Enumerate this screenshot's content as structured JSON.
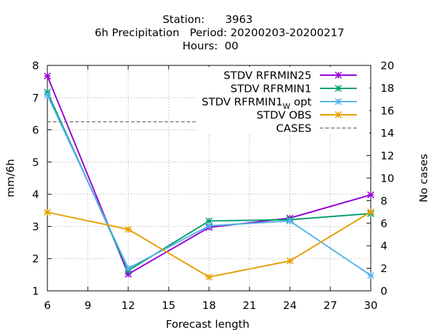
{
  "chart_data": {
    "type": "line",
    "title_lines": [
      "Station:      3963",
      "6h Precipitation   Period: 20200203-20200217",
      "Hours:  00"
    ],
    "xlabel": "Forecast length",
    "ylabel": "mm/6h",
    "y2label": "No cases",
    "xlim": [
      6,
      30
    ],
    "ylim": [
      1,
      8
    ],
    "y2lim": [
      0,
      20
    ],
    "xticks": [
      6,
      9,
      12,
      15,
      18,
      21,
      24,
      27,
      30
    ],
    "yticks": [
      1,
      2,
      3,
      4,
      5,
      6,
      7,
      8
    ],
    "y2ticks": [
      0,
      2,
      4,
      6,
      8,
      10,
      12,
      14,
      16,
      18,
      20
    ],
    "grid": true,
    "legend_position": "top-right",
    "x": [
      6,
      12,
      18,
      24,
      30
    ],
    "series": [
      {
        "name": "STDV RFRMIN25",
        "legend_main": "STDV RFRMIN25",
        "legend_sub": "",
        "legend_tail": "",
        "color": "#9400d3",
        "marker": "x-star",
        "axis": "y",
        "values": [
          7.67,
          1.52,
          2.97,
          3.26,
          3.98
        ]
      },
      {
        "name": "STDV RFRMIN1",
        "legend_main": "STDV RFRMIN1",
        "legend_sub": "",
        "legend_tail": "",
        "color": "#009e73",
        "marker": "x-star",
        "axis": "y",
        "values": [
          7.17,
          1.63,
          3.17,
          3.21,
          3.4
        ]
      },
      {
        "name": "STDV RFRMIN1_W opt",
        "legend_main": "STDV RFRMIN1",
        "legend_sub": "W",
        "legend_tail": " opt",
        "color": "#56b4e9",
        "marker": "x-star",
        "axis": "y",
        "values": [
          7.08,
          1.7,
          3.02,
          3.17,
          1.48
        ]
      },
      {
        "name": "STDV OBS",
        "legend_main": "STDV OBS",
        "legend_sub": "",
        "legend_tail": "",
        "color": "#e69f00",
        "marker": "x-star",
        "axis": "y",
        "values": [
          3.44,
          2.91,
          1.43,
          1.93,
          3.45
        ]
      },
      {
        "name": "CASES",
        "legend_main": "CASES",
        "legend_sub": "",
        "legend_tail": "",
        "color": "#808080",
        "marker": "none",
        "dashed": true,
        "axis": "y2",
        "values": [
          15,
          15,
          15,
          15,
          15
        ]
      }
    ]
  }
}
